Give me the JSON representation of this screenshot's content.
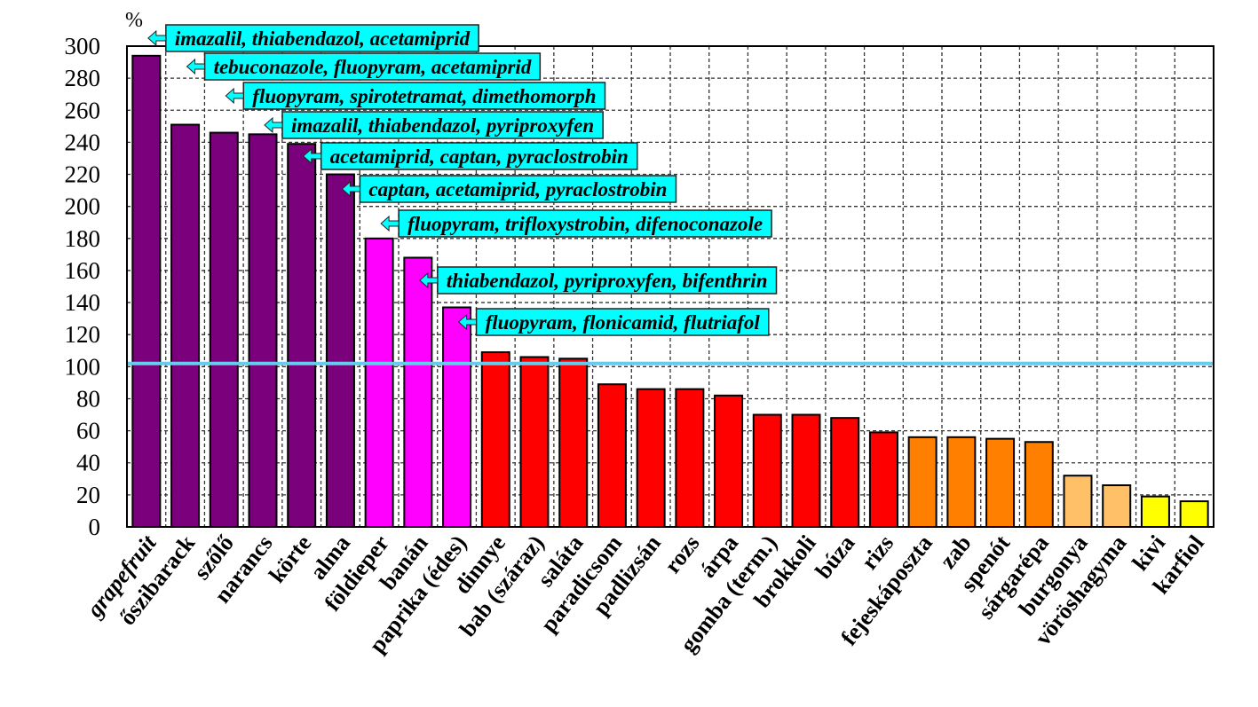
{
  "chart_data": {
    "type": "bar",
    "title": "",
    "ylabel": "%",
    "xlabel": "",
    "ylim": [
      0,
      300
    ],
    "yticks": [
      0,
      20,
      40,
      60,
      80,
      100,
      120,
      140,
      160,
      180,
      200,
      220,
      240,
      260,
      280,
      300
    ],
    "grid": true,
    "reference_line": 102,
    "reference_color": "#66CCEE",
    "categories": [
      "grapefruit",
      "őszibarack",
      "szőlő",
      "narancs",
      "körte",
      "alma",
      "földieper",
      "banán",
      "paprika (édes)",
      "dinnye",
      "bab (száraz)",
      "saláta",
      "paradicsom",
      "padlizsán",
      "rozs",
      "árpa",
      "gomba (term.)",
      "brokkoli",
      "búza",
      "rizs",
      "fejeskáposzta",
      "zab",
      "spenót",
      "sárgarépa",
      "burgonya",
      "vöröshagyma",
      "kivi",
      "karfiol"
    ],
    "italic_categories": [
      "grapefruit"
    ],
    "values": [
      294,
      251,
      246,
      245,
      239,
      220,
      180,
      168,
      137,
      109,
      106,
      105,
      89,
      86,
      86,
      82,
      70,
      70,
      68,
      59,
      56,
      56,
      55,
      53,
      32,
      26,
      19,
      16
    ],
    "colors": [
      "#7B007B",
      "#7B007B",
      "#7B007B",
      "#7B007B",
      "#7B007B",
      "#7B007B",
      "#FF00FF",
      "#FF00FF",
      "#FF00FF",
      "#FF0000",
      "#FF0000",
      "#FF0000",
      "#FF0000",
      "#FF0000",
      "#FF0000",
      "#FF0000",
      "#FF0000",
      "#FF0000",
      "#FF0000",
      "#FF0000",
      "#FF8000",
      "#FF8000",
      "#FF8000",
      "#FF8000",
      "#FFC068",
      "#FFC068",
      "#FFFF00",
      "#FFFF00"
    ],
    "annotations": [
      {
        "bar": 0,
        "text": "imazalil, thiabendazol, acetamiprid"
      },
      {
        "bar": 1,
        "text": "tebuconazole, fluopyram, acetamiprid"
      },
      {
        "bar": 2,
        "text": "fluopyram, spirotetramat, dimethomorph"
      },
      {
        "bar": 3,
        "text": "imazalil, thiabendazol, pyriproxyfen"
      },
      {
        "bar": 4,
        "text": "acetamiprid, captan, pyraclostrobin"
      },
      {
        "bar": 5,
        "text": "captan, acetamiprid, pyraclostrobin"
      },
      {
        "bar": 6,
        "text": "fluopyram, trifloxystrobin, difenoconazole"
      },
      {
        "bar": 7,
        "text": "thiabendazol, pyriproxyfen, bifenthrin"
      },
      {
        "bar": 8,
        "text": "fluopyram, flonicamid, flutriafol"
      }
    ],
    "annotation_color": "#00FFFF"
  }
}
